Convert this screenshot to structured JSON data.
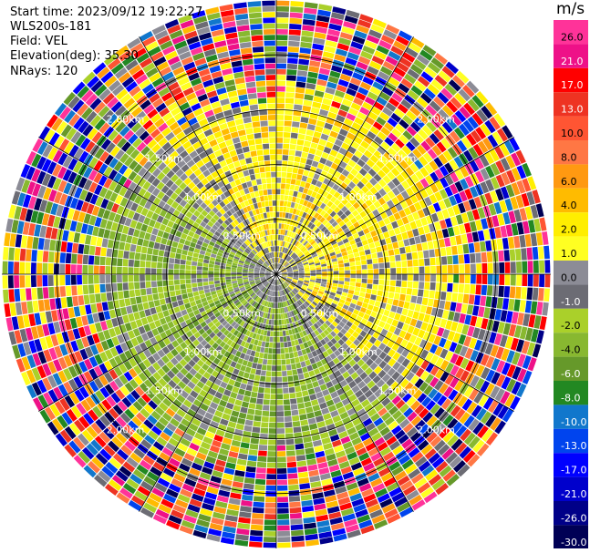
{
  "header": {
    "start_time": "Start time: 2023/09/12 19:22:27",
    "instrument": "WLS200s-181",
    "field": "Field: VEL",
    "elevation": "Elevation(deg): 35.30",
    "nrays": "NRays: 120"
  },
  "chart_data": {
    "type": "heatmap",
    "projection": "polar-ppi",
    "title": "",
    "field": "VEL",
    "unit": "m/s",
    "n_rays": 120,
    "range_rings_km": [
      0.5,
      1.0,
      1.5,
      2.0
    ],
    "ring_labels": [
      "0.50km",
      "1.00km",
      "1.50km",
      "2.00km"
    ],
    "max_range_km": 2.5,
    "colorbar": {
      "title": "m/s",
      "bins": [
        {
          "label": "26.0",
          "color": "#ff3399"
        },
        {
          "label": "21.0",
          "color": "#ee1188"
        },
        {
          "label": "17.0",
          "color": "#ff0000"
        },
        {
          "label": "13.0",
          "color": "#ee3322"
        },
        {
          "label": "10.0",
          "color": "#ff5533"
        },
        {
          "label": "8.0",
          "color": "#ff7744"
        },
        {
          "label": "6.0",
          "color": "#ff9911"
        },
        {
          "label": "4.0",
          "color": "#ffbb00"
        },
        {
          "label": "2.0",
          "color": "#ffee00"
        },
        {
          "label": "1.0",
          "color": "#ffff22"
        },
        {
          "label": "0.0",
          "color": "#8c8c96"
        },
        {
          "label": "-1.0",
          "color": "#6c6c74"
        },
        {
          "label": "-2.0",
          "color": "#aad02a"
        },
        {
          "label": "-4.0",
          "color": "#88b830"
        },
        {
          "label": "-6.0",
          "color": "#66992a"
        },
        {
          "label": "-8.0",
          "color": "#228822"
        },
        {
          "label": "-10.0",
          "color": "#1177cc"
        },
        {
          "label": "-13.0",
          "color": "#0044ee"
        },
        {
          "label": "-17.0",
          "color": "#0000ff"
        },
        {
          "label": "-21.0",
          "color": "#0000cc"
        },
        {
          "label": "-26.0",
          "color": "#000088"
        },
        {
          "label": "-30.0",
          "color": "#000055"
        }
      ]
    },
    "field_pattern": {
      "inner_zone_km": 1.5,
      "inner_positive_sector": "north-east (yellow, +1 to +6 m/s)",
      "inner_negative_sector": "south-west (green, -1 to -6 m/s)",
      "near_zero": "gray scattered near origin",
      "outer_zone": "noise, random multicolour values beyond 1.6 km"
    }
  }
}
